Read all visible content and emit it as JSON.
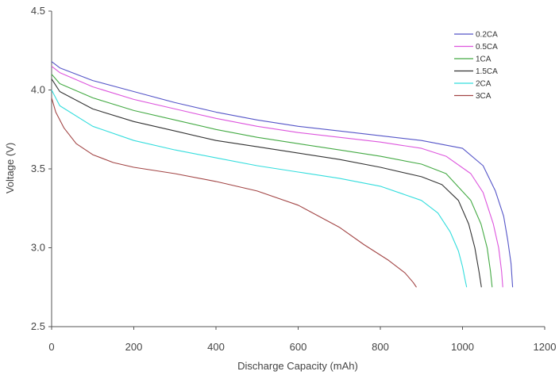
{
  "chart_data": {
    "type": "line",
    "title": "",
    "xlabel": "Discharge Capacity (mAh)",
    "ylabel": "Voltage (V)",
    "xlim": [
      0,
      1200
    ],
    "ylim": [
      2.5,
      4.5
    ],
    "xticks": [
      0,
      200,
      400,
      600,
      800,
      1000,
      1200
    ],
    "yticks": [
      2.5,
      3.0,
      3.5,
      4.0,
      4.5
    ],
    "xtick_labels": [
      "0",
      "200",
      "400",
      "600",
      "800",
      "1000",
      "1200"
    ],
    "ytick_labels": [
      "2.5",
      "3.0",
      "3.5",
      "4.0",
      "4.5"
    ],
    "grid": false,
    "legend_position": "top-right",
    "series": [
      {
        "name": "0.2CA",
        "color": "#5555c8",
        "x": [
          0,
          20,
          100,
          200,
          300,
          400,
          500,
          600,
          700,
          800,
          900,
          1000,
          1050,
          1080,
          1100,
          1110,
          1118,
          1122
        ],
        "y": [
          4.18,
          4.14,
          4.06,
          3.99,
          3.92,
          3.86,
          3.81,
          3.77,
          3.74,
          3.71,
          3.68,
          3.63,
          3.52,
          3.36,
          3.2,
          3.05,
          2.9,
          2.75
        ]
      },
      {
        "name": "0.5CA",
        "color": "#dd55dd",
        "x": [
          0,
          20,
          100,
          200,
          300,
          400,
          500,
          600,
          700,
          800,
          900,
          960,
          1020,
          1050,
          1075,
          1088,
          1095,
          1098
        ],
        "y": [
          4.15,
          4.11,
          4.02,
          3.94,
          3.88,
          3.82,
          3.77,
          3.73,
          3.7,
          3.67,
          3.63,
          3.58,
          3.47,
          3.35,
          3.15,
          3.0,
          2.85,
          2.75
        ]
      },
      {
        "name": "1CA",
        "color": "#44aa44",
        "x": [
          0,
          20,
          100,
          200,
          300,
          400,
          500,
          600,
          700,
          800,
          900,
          960,
          1020,
          1045,
          1060,
          1068,
          1072
        ],
        "y": [
          4.1,
          4.04,
          3.95,
          3.87,
          3.81,
          3.75,
          3.7,
          3.66,
          3.62,
          3.58,
          3.53,
          3.47,
          3.3,
          3.15,
          3.0,
          2.85,
          2.75
        ]
      },
      {
        "name": "1.5CA",
        "color": "#333333",
        "x": [
          0,
          20,
          100,
          200,
          300,
          400,
          500,
          600,
          700,
          800,
          900,
          950,
          990,
          1015,
          1030,
          1040,
          1046
        ],
        "y": [
          4.07,
          3.99,
          3.88,
          3.8,
          3.74,
          3.68,
          3.64,
          3.6,
          3.56,
          3.51,
          3.45,
          3.4,
          3.3,
          3.15,
          3.0,
          2.85,
          2.75
        ]
      },
      {
        "name": "2CA",
        "color": "#33dddd",
        "x": [
          0,
          20,
          100,
          200,
          300,
          400,
          500,
          600,
          700,
          800,
          900,
          940,
          970,
          990,
          1000,
          1006,
          1010
        ],
        "y": [
          4.0,
          3.9,
          3.77,
          3.68,
          3.62,
          3.57,
          3.52,
          3.48,
          3.44,
          3.39,
          3.3,
          3.22,
          3.1,
          2.98,
          2.88,
          2.8,
          2.75
        ]
      },
      {
        "name": "3CA",
        "color": "#a24545",
        "x": [
          0,
          10,
          30,
          60,
          100,
          150,
          200,
          300,
          400,
          500,
          600,
          700,
          760,
          820,
          860,
          880,
          888
        ],
        "y": [
          3.95,
          3.86,
          3.76,
          3.66,
          3.59,
          3.54,
          3.51,
          3.47,
          3.42,
          3.36,
          3.27,
          3.13,
          3.02,
          2.92,
          2.84,
          2.78,
          2.75
        ]
      }
    ]
  }
}
